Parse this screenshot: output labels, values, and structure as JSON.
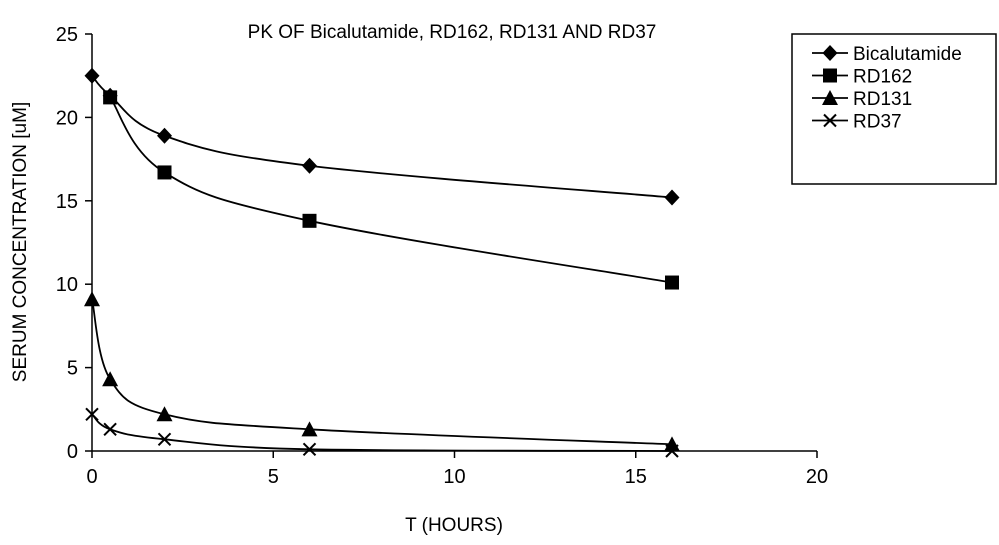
{
  "chart_data": {
    "type": "line",
    "title": "PK OF Bicalutamide, RD162, RD131 AND RD37",
    "xlabel": "T (HOURS)",
    "ylabel": "SERUM CONCENTRATION [uM]",
    "xlim": [
      0,
      20
    ],
    "ylim": [
      0,
      25
    ],
    "xticks": [
      "0",
      "5",
      "10",
      "15",
      "20"
    ],
    "yticks": [
      "0",
      "5",
      "10",
      "15",
      "20",
      "25"
    ],
    "grid": false,
    "legend_position": "top-right",
    "series": [
      {
        "name": "Bicalutamide",
        "marker": "diamond",
        "x": [
          0,
          0.5,
          2,
          6,
          16
        ],
        "y": [
          22.5,
          21.3,
          18.9,
          17.1,
          15.2
        ]
      },
      {
        "name": "RD162",
        "marker": "square",
        "x": [
          0.5,
          2,
          6,
          16
        ],
        "y": [
          21.2,
          16.7,
          13.8,
          10.1
        ]
      },
      {
        "name": "RD131",
        "marker": "triangle",
        "x": [
          0,
          0.5,
          2,
          6,
          16
        ],
        "y": [
          9.1,
          4.3,
          2.2,
          1.3,
          0.4
        ]
      },
      {
        "name": "RD37",
        "marker": "x",
        "x": [
          0,
          0.5,
          2,
          6,
          16
        ],
        "y": [
          2.2,
          1.3,
          0.7,
          0.1,
          0.0
        ]
      }
    ]
  }
}
